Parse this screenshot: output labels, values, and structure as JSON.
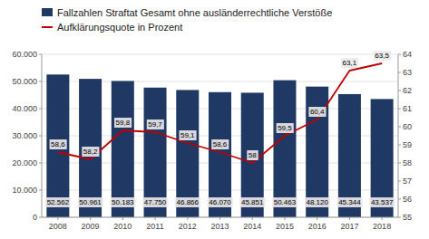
{
  "chart_data": {
    "type": "bar",
    "categories": [
      "2008",
      "2009",
      "2010",
      "2011",
      "2012",
      "2013",
      "2014",
      "2015",
      "2016",
      "2017",
      "2018"
    ],
    "series": [
      {
        "name": "Fallzahlen Straftat Gesamt ohne ausländerrechtliche Verstöße",
        "type": "bar",
        "color": "#1F3864",
        "values": [
          52562,
          50961,
          50183,
          47750,
          46866,
          46070,
          45851,
          50463,
          48120,
          45344,
          43537
        ],
        "value_labels": [
          "52.562",
          "50.961",
          "50.183",
          "47.750",
          "46.866",
          "46.070",
          "45.851",
          "50.463",
          "48.120",
          "45.344",
          "43.537"
        ]
      },
      {
        "name": "Aufklärungsquote in Prozent",
        "type": "line",
        "color": "#C00000",
        "axis": "y2",
        "values": [
          58.6,
          58.2,
          59.8,
          59.7,
          59.1,
          58.6,
          58.0,
          59.5,
          60.4,
          63.1,
          63.5
        ],
        "value_labels": [
          "58,6",
          "58,2",
          "59,8",
          "59,7",
          "59,1",
          "58,6",
          "58",
          "59,5",
          "60,4",
          "63,1",
          "63,5"
        ]
      }
    ],
    "ylim": [
      0,
      60000
    ],
    "yticks": [
      0,
      {
        "value": 10000,
        "label": "10.000"
      },
      {
        "value": 20000,
        "label": "20.000"
      },
      {
        "value": 30000,
        "label": "30.000"
      },
      {
        "value": 40000,
        "label": "40.000"
      },
      {
        "value": 50000,
        "label": "50.000"
      },
      {
        "value": 60000,
        "label": "60.000"
      }
    ],
    "y2lim": [
      55,
      64
    ],
    "y2ticks": [
      55,
      56,
      57,
      58,
      59,
      60,
      61,
      62,
      63,
      64
    ],
    "grid": true,
    "legend": "top",
    "data_labels": true
  }
}
